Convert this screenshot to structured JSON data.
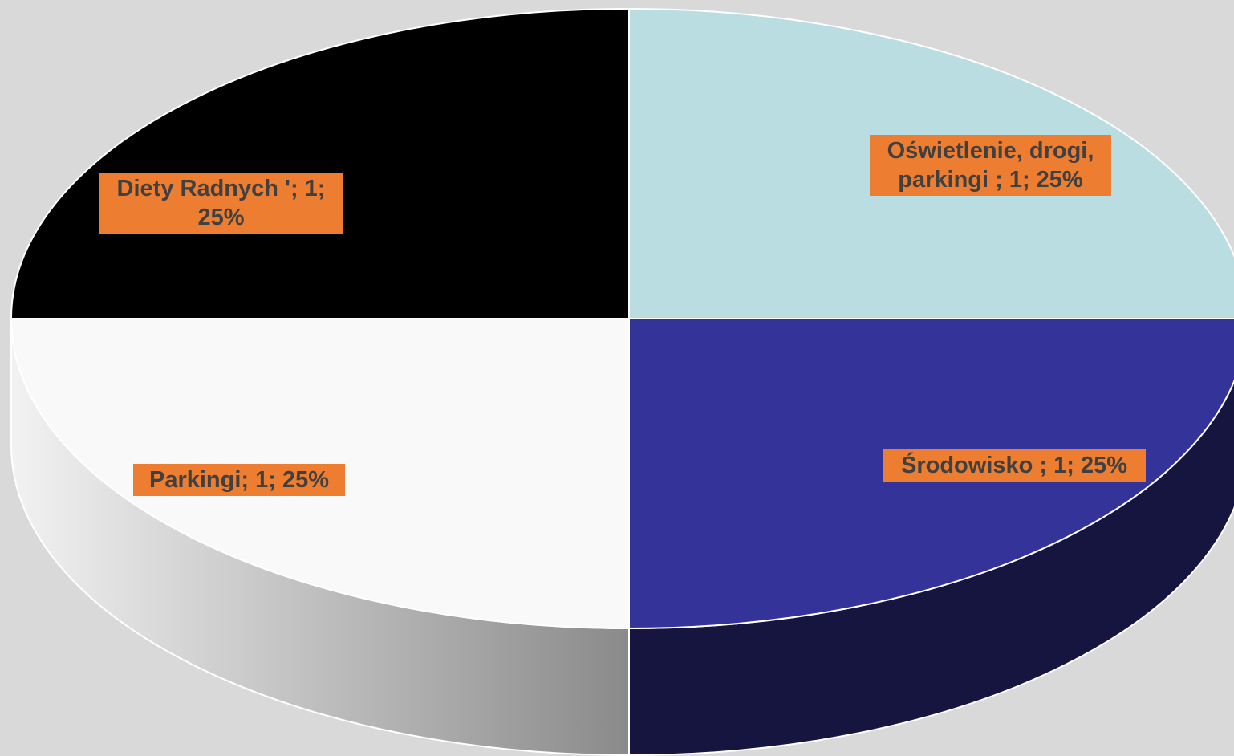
{
  "chart_data": {
    "type": "pie",
    "style": "3d",
    "title": "",
    "slices": [
      {
        "label": "Oświetlenie, drogi, parkingi ",
        "value": 1,
        "percent": 25,
        "color": "#b9dde0",
        "side_color": "#8fb7ba",
        "data_label": "Oświetlenie, drogi, parkingi ; 1; 25%"
      },
      {
        "label": "Środowisko ",
        "value": 1,
        "percent": 25,
        "color": "#333399",
        "side_color": "#151540",
        "data_label": "Środowisko ; 1; 25%"
      },
      {
        "label": "Parkingi",
        "value": 1,
        "percent": 25,
        "color": "#f9f9f9",
        "side_color": "#8a8a8a",
        "data_label": "Parkingi; 1; 25%"
      },
      {
        "label": "Diety Radnych '",
        "value": 1,
        "percent": 25,
        "color": "#000000",
        "side_color": "#000000",
        "data_label": "Diety Radnych '; 1; 25%"
      }
    ],
    "data_label_background": "#ed7d31",
    "data_label_color": "#404040",
    "slice_border_color": "#ffffff",
    "legend": "none"
  }
}
